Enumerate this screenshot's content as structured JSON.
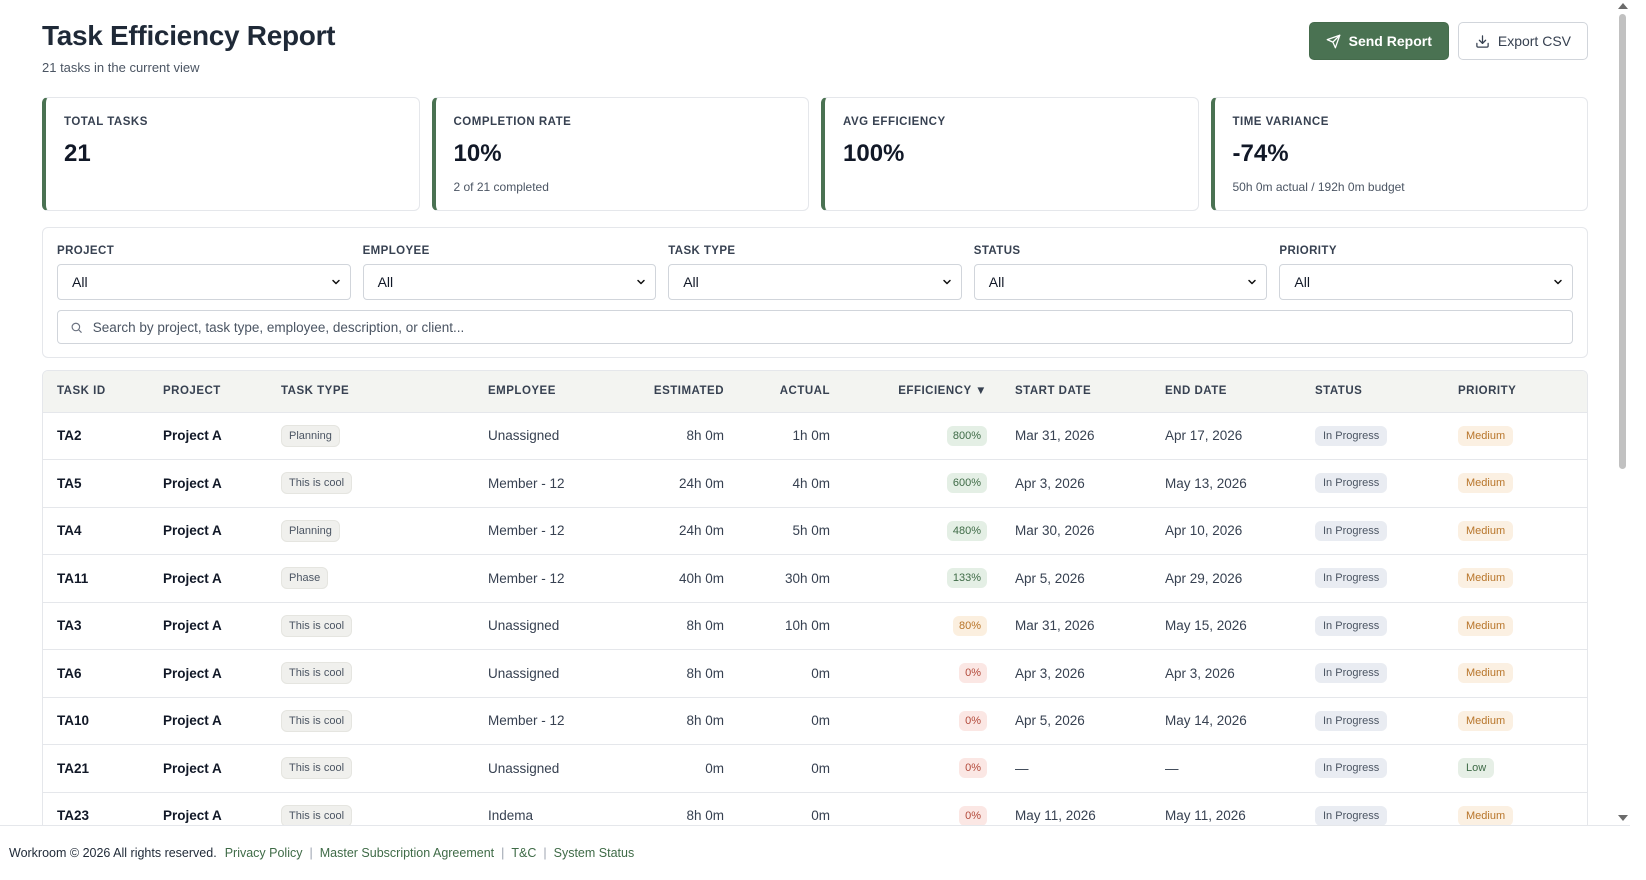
{
  "header": {
    "title": "Task Efficiency Report",
    "subtitle": "21 tasks in the current view",
    "send_label": "Send Report",
    "export_label": "Export CSV"
  },
  "stats": [
    {
      "label": "TOTAL TASKS",
      "value": "21",
      "sub": ""
    },
    {
      "label": "COMPLETION RATE",
      "value": "10%",
      "sub": "2 of 21 completed"
    },
    {
      "label": "AVG EFFICIENCY",
      "value": "100%",
      "sub": ""
    },
    {
      "label": "TIME VARIANCE",
      "value": "-74%",
      "sub": "50h 0m actual / 192h 0m budget"
    }
  ],
  "filters": [
    {
      "label": "PROJECT",
      "value": "All"
    },
    {
      "label": "EMPLOYEE",
      "value": "All"
    },
    {
      "label": "TASK TYPE",
      "value": "All"
    },
    {
      "label": "STATUS",
      "value": "All"
    },
    {
      "label": "PRIORITY",
      "value": "All"
    }
  ],
  "search": {
    "placeholder": "Search by project, task type, employee, description, or client..."
  },
  "table": {
    "columns": [
      "TASK ID",
      "PROJECT",
      "TASK TYPE",
      "EMPLOYEE",
      "ESTIMATED",
      "ACTUAL",
      "EFFICIENCY ▼",
      "START DATE",
      "END DATE",
      "STATUS",
      "PRIORITY"
    ],
    "rows": [
      {
        "id": "TA2",
        "project": "Project A",
        "type": "Planning",
        "employee": "Unassigned",
        "estimated": "8h 0m",
        "actual": "1h 0m",
        "efficiency": "800%",
        "eff_level": "good",
        "start": "Mar 31, 2026",
        "end": "Apr 17, 2026",
        "status": "In Progress",
        "priority": "Medium"
      },
      {
        "id": "TA5",
        "project": "Project A",
        "type": "This is cool",
        "employee": "Member - 12",
        "estimated": "24h 0m",
        "actual": "4h 0m",
        "efficiency": "600%",
        "eff_level": "good",
        "start": "Apr 3, 2026",
        "end": "May 13, 2026",
        "status": "In Progress",
        "priority": "Medium"
      },
      {
        "id": "TA4",
        "project": "Project A",
        "type": "Planning",
        "employee": "Member - 12",
        "estimated": "24h 0m",
        "actual": "5h 0m",
        "efficiency": "480%",
        "eff_level": "good",
        "start": "Mar 30, 2026",
        "end": "Apr 10, 2026",
        "status": "In Progress",
        "priority": "Medium"
      },
      {
        "id": "TA11",
        "project": "Project A",
        "type": "Phase",
        "employee": "Member - 12",
        "estimated": "40h 0m",
        "actual": "30h 0m",
        "efficiency": "133%",
        "eff_level": "good",
        "start": "Apr 5, 2026",
        "end": "Apr 29, 2026",
        "status": "In Progress",
        "priority": "Medium"
      },
      {
        "id": "TA3",
        "project": "Project A",
        "type": "This is cool",
        "employee": "Unassigned",
        "estimated": "8h 0m",
        "actual": "10h 0m",
        "efficiency": "80%",
        "eff_level": "warn",
        "start": "Mar 31, 2026",
        "end": "May 15, 2026",
        "status": "In Progress",
        "priority": "Medium"
      },
      {
        "id": "TA6",
        "project": "Project A",
        "type": "This is cool",
        "employee": "Unassigned",
        "estimated": "8h 0m",
        "actual": "0m",
        "efficiency": "0%",
        "eff_level": "bad",
        "start": "Apr 3, 2026",
        "end": "Apr 3, 2026",
        "status": "In Progress",
        "priority": "Medium"
      },
      {
        "id": "TA10",
        "project": "Project A",
        "type": "This is cool",
        "employee": "Member - 12",
        "estimated": "8h 0m",
        "actual": "0m",
        "efficiency": "0%",
        "eff_level": "bad",
        "start": "Apr 5, 2026",
        "end": "May 14, 2026",
        "status": "In Progress",
        "priority": "Medium"
      },
      {
        "id": "TA21",
        "project": "Project A",
        "type": "This is cool",
        "employee": "Unassigned",
        "estimated": "0m",
        "actual": "0m",
        "efficiency": "0%",
        "eff_level": "bad",
        "start": "—",
        "end": "—",
        "status": "In Progress",
        "priority": "Low"
      },
      {
        "id": "TA23",
        "project": "Project A",
        "type": "This is cool",
        "employee": "Indema",
        "estimated": "8h 0m",
        "actual": "0m",
        "efficiency": "0%",
        "eff_level": "bad",
        "start": "May 11, 2026",
        "end": "May 11, 2026",
        "status": "In Progress",
        "priority": "Medium"
      }
    ]
  },
  "footer": {
    "copyright": "Workroom © 2026 All rights reserved.",
    "links": [
      "Privacy Policy",
      "Master Subscription Agreement",
      "T&C",
      "System Status"
    ]
  },
  "colors": {
    "accent": "#4a7252",
    "link": "#3f6b47"
  },
  "icons": {
    "send": "send-icon",
    "export": "download-icon",
    "search": "search-icon",
    "select": "chevron-down-icon"
  }
}
